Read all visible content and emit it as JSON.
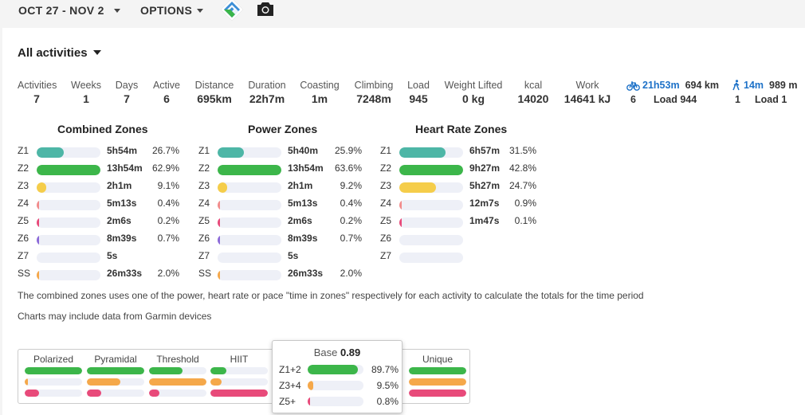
{
  "topbar": {
    "date_range": "OCT 27 - NOV 2",
    "options_label": "OPTIONS",
    "logo_icon": "app-logo-icon",
    "camera_icon": "camera-icon"
  },
  "filter": {
    "activity_type": "All activities"
  },
  "stats": [
    {
      "label": "Activities",
      "value": "7"
    },
    {
      "label": "Weeks",
      "value": "1"
    },
    {
      "label": "Days",
      "value": "7"
    },
    {
      "label": "Active",
      "value": "6"
    },
    {
      "label": "Distance",
      "value": "695km"
    },
    {
      "label": "Duration",
      "value": "22h7m"
    },
    {
      "label": "Coasting",
      "value": "1m"
    },
    {
      "label": "Climbing",
      "value": "7248m"
    },
    {
      "label": "Load",
      "value": "945"
    },
    {
      "label": "Weight Lifted",
      "value": "0 kg"
    },
    {
      "label": "kcal",
      "value": "14020"
    },
    {
      "label": "Work",
      "value": "14641 kJ"
    }
  ],
  "sports": [
    {
      "icon": "bike-icon",
      "duration": "21h53m",
      "distance": "694 km",
      "count": "6",
      "load": "Load 944"
    },
    {
      "icon": "walk-icon",
      "duration": "14m",
      "distance": "989 m",
      "count": "1",
      "load": "Load 1"
    }
  ],
  "colors": {
    "z1": "#4db6a6",
    "z2": "#3cb64a",
    "z3": "#f5cd4a",
    "z4": "#f28c8c",
    "z5": "#e84a7a",
    "z6": "#8c6ad8",
    "ss": "#f5a84a",
    "track": "#eef0f7",
    "link": "#1e72c8"
  },
  "zones": {
    "combined": {
      "title": "Combined Zones",
      "rows": [
        {
          "zone": "Z1",
          "time": "5h54m",
          "pct": "26.7%",
          "fill": 0.42,
          "color": "#4db6a6"
        },
        {
          "zone": "Z2",
          "time": "13h54m",
          "pct": "62.9%",
          "fill": 1.0,
          "color": "#3cb64a"
        },
        {
          "zone": "Z3",
          "time": "2h1m",
          "pct": "9.1%",
          "fill": 0.15,
          "color": "#f5cd4a"
        },
        {
          "zone": "Z4",
          "time": "5m13s",
          "pct": "0.4%",
          "fill": 0.02,
          "color": "#f28c8c"
        },
        {
          "zone": "Z5",
          "time": "2m6s",
          "pct": "0.2%",
          "fill": 0.02,
          "color": "#e84a7a"
        },
        {
          "zone": "Z6",
          "time": "8m39s",
          "pct": "0.7%",
          "fill": 0.02,
          "color": "#8c6ad8"
        },
        {
          "zone": "Z7",
          "time": "5s",
          "pct": "",
          "fill": 0.0,
          "color": "#8c6ad8"
        },
        {
          "zone": "SS",
          "time": "26m33s",
          "pct": "2.0%",
          "fill": 0.04,
          "color": "#f5a84a"
        }
      ]
    },
    "power": {
      "title": "Power Zones",
      "rows": [
        {
          "zone": "Z1",
          "time": "5h40m",
          "pct": "25.9%",
          "fill": 0.41,
          "color": "#4db6a6"
        },
        {
          "zone": "Z2",
          "time": "13h54m",
          "pct": "63.6%",
          "fill": 1.0,
          "color": "#3cb64a"
        },
        {
          "zone": "Z3",
          "time": "2h1m",
          "pct": "9.2%",
          "fill": 0.15,
          "color": "#f5cd4a"
        },
        {
          "zone": "Z4",
          "time": "5m13s",
          "pct": "0.4%",
          "fill": 0.02,
          "color": "#f28c8c"
        },
        {
          "zone": "Z5",
          "time": "2m6s",
          "pct": "0.2%",
          "fill": 0.02,
          "color": "#e84a7a"
        },
        {
          "zone": "Z6",
          "time": "8m39s",
          "pct": "0.7%",
          "fill": 0.02,
          "color": "#8c6ad8"
        },
        {
          "zone": "Z7",
          "time": "5s",
          "pct": "",
          "fill": 0.0,
          "color": "#8c6ad8"
        },
        {
          "zone": "SS",
          "time": "26m33s",
          "pct": "2.0%",
          "fill": 0.04,
          "color": "#f5a84a"
        }
      ]
    },
    "heart_rate": {
      "title": "Heart Rate Zones",
      "rows": [
        {
          "zone": "Z1",
          "time": "6h57m",
          "pct": "31.5%",
          "fill": 0.73,
          "color": "#4db6a6"
        },
        {
          "zone": "Z2",
          "time": "9h27m",
          "pct": "42.8%",
          "fill": 1.0,
          "color": "#3cb64a"
        },
        {
          "zone": "Z3",
          "time": "5h27m",
          "pct": "24.7%",
          "fill": 0.58,
          "color": "#f5cd4a"
        },
        {
          "zone": "Z4",
          "time": "12m7s",
          "pct": "0.9%",
          "fill": 0.02,
          "color": "#f28c8c"
        },
        {
          "zone": "Z5",
          "time": "1m47s",
          "pct": "0.1%",
          "fill": 0.02,
          "color": "#e84a7a"
        },
        {
          "zone": "Z6",
          "time": "",
          "pct": "",
          "fill": 0.0,
          "color": "#8c6ad8"
        },
        {
          "zone": "Z7",
          "time": "",
          "pct": "",
          "fill": 0.0,
          "color": "#8c6ad8"
        }
      ]
    }
  },
  "notes": {
    "zones_note": "The combined zones uses one of the power, heart rate or pace \"time in zones\" respectively for each activity to calculate the totals for the time period",
    "garmin_note": "Charts may include data from Garmin devices"
  },
  "distribution": {
    "columns": [
      {
        "label": "Polarized",
        "bars": [
          {
            "fill": 1.0,
            "color": "#3cb64a"
          },
          {
            "fill": 0.05,
            "color": "#f5a84a"
          },
          {
            "fill": 0.25,
            "color": "#e84a7a"
          }
        ]
      },
      {
        "label": "Pyramidal",
        "bars": [
          {
            "fill": 1.0,
            "color": "#3cb64a"
          },
          {
            "fill": 0.58,
            "color": "#f5a84a"
          },
          {
            "fill": 0.25,
            "color": "#e84a7a"
          }
        ]
      },
      {
        "label": "Threshold",
        "bars": [
          {
            "fill": 0.58,
            "color": "#3cb64a"
          },
          {
            "fill": 1.0,
            "color": "#f5a84a"
          },
          {
            "fill": 0.18,
            "color": "#e84a7a"
          }
        ]
      },
      {
        "label": "HIIT",
        "bars": [
          {
            "fill": 0.28,
            "color": "#3cb64a"
          },
          {
            "fill": 0.2,
            "color": "#f5a84a"
          },
          {
            "fill": 1.0,
            "color": "#e84a7a"
          }
        ]
      },
      {
        "label": "Unique",
        "bars": [
          {
            "fill": 1.0,
            "color": "#3cb64a"
          },
          {
            "fill": 1.0,
            "color": "#f5a84a"
          },
          {
            "fill": 1.0,
            "color": "#e84a7a"
          }
        ]
      }
    ],
    "popup": {
      "title": "Base",
      "score": "0.89",
      "rows": [
        {
          "label": "Z1+2",
          "pct": "89.7%",
          "fill": 0.897,
          "color": "#3cb64a"
        },
        {
          "label": "Z3+4",
          "pct": "9.5%",
          "fill": 0.095,
          "color": "#f5a84a"
        },
        {
          "label": "Z5+",
          "pct": "0.8%",
          "fill": 0.008,
          "color": "#e84a7a"
        }
      ]
    }
  }
}
